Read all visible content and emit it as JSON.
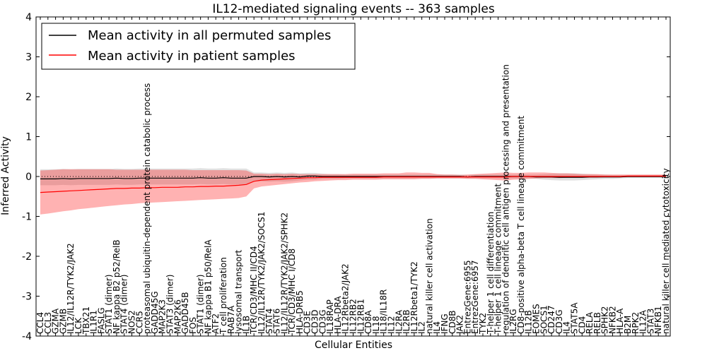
{
  "chart_data": {
    "type": "line",
    "title": "IL12-mediated signaling events -- 363 samples",
    "xlabel": "Cellular Entities",
    "ylabel": "Inferred Activity",
    "ylim": [
      -4,
      4
    ],
    "yticks": [
      -4,
      -3,
      -2,
      -1,
      0,
      1,
      2,
      3,
      4
    ],
    "legend_position": "top-left",
    "colors": {
      "permuted_line": "#000000",
      "permuted_band": "#c8c8c8",
      "patient_line": "#ff0000",
      "patient_band": "#ff0000",
      "zero_line": "#000000"
    },
    "categories": [
      "CCL4",
      "CCL3",
      "GZMA",
      "GZMB",
      "IL12/IL12R/TYK2/JAK2",
      "LCK",
      "TBX21",
      "IL1R1",
      "FASLG",
      "STAT1 (dimer)",
      "NF kappa B2 p52/RelB",
      "STAT4 (dimer)",
      "NOS2",
      "CCR5",
      "proteasomal ubiquitin-dependent protein catabolic process",
      "GADD45G",
      "MAP2K3",
      "STAT3 (dimer)",
      "MAP2K6",
      "GADD45B",
      "FOS",
      "STAT1 (dimer)",
      "NF kappa B1 p50/RelA",
      "ATF2",
      "T cell proliferation",
      "RAB7A",
      "lysosomal transport",
      "IL1B",
      "TCR/CD3/MHC II/CD4",
      "IL12/IL12R/TYK2/JAK2/SOCS1",
      "STAT4",
      "STAT6",
      "IL12/IL12R/TYK2/JAK2/SPHK2",
      "TCR/CD3/MHC I/CD8",
      "HLA-DRB5",
      "CD3E",
      "CD3D",
      "CD3G",
      "IL18RAP",
      "HLA-DRA",
      "IL12Rbeta2/JAK2",
      "IL12RB2",
      "IL12RB1",
      "CD8A",
      "IL18",
      "IL18/IL18R",
      "IL12",
      "IL2RA",
      "IL2RB",
      "IL12Rbeta1/TYK2",
      "IL2",
      "natural killer cell activation",
      "IL4",
      "IFNG",
      "CD8B",
      "JAK2",
      "EntrezGene:6955",
      "EntrezGene:6957",
      "TYK2",
      "T-helper 1 cell differentiation",
      "T-helper 1 cell lineage commitment",
      "regulation of dendritic cell antigen processing and presentation",
      "IL2RG",
      "CD8-positive alpha-beta T cell lineage commitment",
      "IL12B",
      "EOMES",
      "SOCS1",
      "CD247",
      "CD3G",
      "IL4",
      "STAT5A",
      "CD4",
      "RELA",
      "RELB",
      "SPHK2",
      "NFKB2",
      "HLA-A",
      "B2M",
      "RPK2",
      "IL12A",
      "STAT3",
      "NFKB1",
      "natural killer cell mediated cytotoxicity"
    ],
    "series": [
      {
        "name": "Mean activity in all permuted samples",
        "values": [
          -0.06,
          -0.06,
          -0.06,
          -0.05,
          -0.06,
          -0.05,
          -0.05,
          -0.05,
          -0.05,
          -0.05,
          -0.04,
          -0.05,
          -0.05,
          -0.04,
          -0.04,
          -0.04,
          -0.04,
          -0.04,
          -0.04,
          -0.04,
          -0.04,
          -0.03,
          -0.04,
          -0.04,
          -0.03,
          -0.04,
          -0.04,
          -0.04,
          0.0,
          0.0,
          -0.01,
          0.0,
          -0.01,
          0.0,
          -0.01,
          0.01,
          0.01,
          0.0,
          0.0,
          0.0,
          0.0,
          0.0,
          0.0,
          0.0,
          0.0,
          0.0,
          0.0,
          0.0,
          0.0,
          0.0,
          0.0,
          0.0,
          0.0,
          0.0,
          0.0,
          0.0,
          -0.01,
          0.0,
          0.0,
          0.0,
          0.0,
          0.0,
          0.0,
          0.0,
          0.0,
          -0.01,
          -0.01,
          -0.01,
          -0.02,
          -0.02,
          -0.02,
          -0.02,
          -0.01,
          -0.01,
          -0.01,
          -0.01,
          -0.01,
          0.0,
          0.0,
          0.0,
          0.0,
          0.0,
          0.0
        ],
        "band_low": [
          -0.22,
          -0.22,
          -0.22,
          -0.21,
          -0.22,
          -0.21,
          -0.21,
          -0.21,
          -0.21,
          -0.21,
          -0.2,
          -0.21,
          -0.21,
          -0.2,
          -0.2,
          -0.2,
          -0.2,
          -0.2,
          -0.2,
          -0.2,
          -0.2,
          -0.19,
          -0.2,
          -0.2,
          -0.19,
          -0.2,
          -0.2,
          -0.2,
          -0.12,
          -0.12,
          -0.13,
          -0.12,
          -0.13,
          -0.12,
          -0.1,
          -0.08,
          -0.08,
          -0.06,
          -0.06,
          -0.06,
          -0.05,
          -0.05,
          -0.05,
          -0.05,
          -0.05,
          -0.05,
          -0.05,
          -0.05,
          -0.05,
          -0.05,
          -0.05,
          -0.05,
          -0.05,
          -0.05,
          -0.05,
          -0.05,
          -0.05,
          -0.05,
          -0.05,
          -0.05,
          -0.05,
          -0.05,
          -0.05,
          -0.05,
          -0.05,
          -0.06,
          -0.08,
          -0.09,
          -0.1,
          -0.1,
          -0.1,
          -0.09,
          -0.08,
          -0.07,
          -0.06,
          -0.06,
          -0.05,
          -0.04,
          -0.04,
          -0.04,
          -0.04,
          -0.04,
          -0.04
        ],
        "band_high": [
          0.18,
          0.18,
          0.18,
          0.19,
          0.18,
          0.19,
          0.19,
          0.19,
          0.19,
          0.19,
          0.2,
          0.19,
          0.19,
          0.2,
          0.2,
          0.2,
          0.2,
          0.2,
          0.2,
          0.2,
          0.2,
          0.21,
          0.2,
          0.2,
          0.21,
          0.2,
          0.2,
          0.2,
          0.1,
          0.1,
          0.09,
          0.1,
          0.09,
          0.1,
          0.08,
          0.09,
          0.09,
          0.07,
          0.06,
          0.06,
          0.05,
          0.05,
          0.05,
          0.05,
          0.05,
          0.05,
          0.05,
          0.05,
          0.05,
          0.05,
          0.05,
          0.05,
          0.05,
          0.05,
          0.05,
          0.05,
          0.04,
          0.05,
          0.05,
          0.05,
          0.05,
          0.05,
          0.05,
          0.05,
          0.05,
          0.05,
          0.06,
          0.07,
          0.08,
          0.08,
          0.08,
          0.07,
          0.06,
          0.05,
          0.05,
          0.04,
          0.04,
          0.04,
          0.04,
          0.04,
          0.04,
          0.04,
          0.04
        ]
      },
      {
        "name": "Mean activity in patient samples",
        "values": [
          -0.4,
          -0.39,
          -0.38,
          -0.37,
          -0.36,
          -0.35,
          -0.34,
          -0.33,
          -0.32,
          -0.31,
          -0.3,
          -0.3,
          -0.29,
          -0.29,
          -0.28,
          -0.28,
          -0.27,
          -0.27,
          -0.27,
          -0.26,
          -0.26,
          -0.25,
          -0.25,
          -0.24,
          -0.24,
          -0.23,
          -0.22,
          -0.2,
          -0.12,
          -0.09,
          -0.08,
          -0.07,
          -0.06,
          -0.05,
          -0.04,
          -0.03,
          -0.03,
          -0.02,
          -0.02,
          -0.02,
          -0.02,
          -0.02,
          -0.02,
          -0.02,
          -0.02,
          -0.01,
          -0.01,
          -0.01,
          -0.01,
          -0.01,
          -0.01,
          -0.01,
          -0.01,
          -0.01,
          -0.01,
          -0.01,
          -0.01,
          -0.01,
          -0.01,
          -0.01,
          -0.01,
          -0.01,
          0.0,
          0.0,
          0.0,
          0.0,
          0.0,
          0.0,
          0.0,
          0.0,
          0.0,
          0.0,
          0.0,
          0.0,
          0.0,
          0.0,
          0.0,
          0.01,
          0.01,
          0.01,
          0.01,
          0.01,
          0.01
        ],
        "band_low": [
          -0.95,
          -0.93,
          -0.9,
          -0.87,
          -0.85,
          -0.82,
          -0.8,
          -0.78,
          -0.76,
          -0.74,
          -0.72,
          -0.7,
          -0.69,
          -0.67,
          -0.66,
          -0.65,
          -0.64,
          -0.63,
          -0.62,
          -0.61,
          -0.6,
          -0.59,
          -0.58,
          -0.57,
          -0.56,
          -0.55,
          -0.54,
          -0.5,
          -0.3,
          -0.25,
          -0.23,
          -0.21,
          -0.19,
          -0.17,
          -0.15,
          -0.14,
          -0.12,
          -0.11,
          -0.1,
          -0.09,
          -0.09,
          -0.08,
          -0.08,
          -0.08,
          -0.08,
          -0.07,
          -0.07,
          -0.07,
          -0.07,
          -0.07,
          -0.06,
          -0.06,
          -0.05,
          -0.05,
          -0.05,
          -0.05,
          -0.06,
          -0.06,
          -0.07,
          -0.08,
          -0.09,
          -0.1,
          -0.08,
          -0.07,
          -0.06,
          -0.05,
          -0.04,
          -0.04,
          -0.04,
          -0.03,
          -0.03,
          -0.03,
          -0.03,
          -0.03,
          -0.02,
          -0.02,
          -0.02,
          -0.02,
          -0.02,
          -0.02,
          -0.02,
          -0.02,
          -0.02
        ],
        "band_high": [
          0.15,
          0.16,
          0.17,
          0.18,
          0.18,
          0.18,
          0.18,
          0.18,
          0.18,
          0.18,
          0.17,
          0.17,
          0.17,
          0.17,
          0.17,
          0.17,
          0.17,
          0.17,
          0.17,
          0.17,
          0.16,
          0.16,
          0.16,
          0.16,
          0.16,
          0.16,
          0.16,
          0.15,
          0.07,
          0.07,
          0.06,
          0.07,
          0.06,
          0.07,
          0.06,
          0.06,
          0.06,
          0.06,
          0.06,
          0.06,
          0.06,
          0.07,
          0.07,
          0.07,
          0.07,
          0.08,
          0.08,
          0.08,
          0.1,
          0.1,
          0.09,
          0.09,
          0.06,
          0.05,
          0.05,
          0.04,
          0.05,
          0.06,
          0.07,
          0.08,
          0.09,
          0.1,
          0.09,
          0.09,
          0.1,
          0.1,
          0.1,
          0.09,
          0.08,
          0.08,
          0.07,
          0.06,
          0.06,
          0.06,
          0.05,
          0.05,
          0.05,
          0.05,
          0.05,
          0.05,
          0.05,
          0.05,
          0.05
        ]
      }
    ]
  }
}
